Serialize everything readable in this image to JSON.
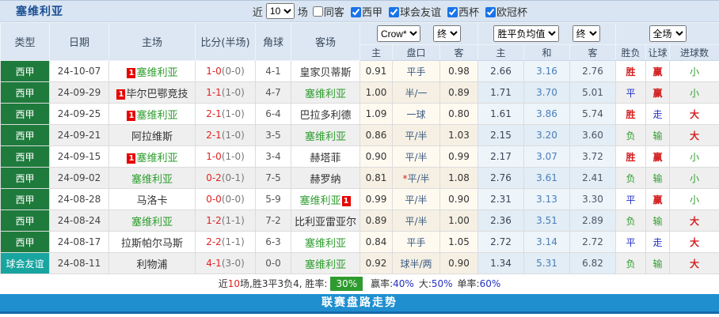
{
  "topbar": {
    "title": "塞维利亚",
    "near_label": "近",
    "near_count": "10",
    "unit_label": "场",
    "same_away_label": "同客",
    "same_away_checked": false,
    "filters": [
      {
        "label": "西甲",
        "checked": true
      },
      {
        "label": "球会友谊",
        "checked": true
      },
      {
        "label": "西杯",
        "checked": true
      },
      {
        "label": "欧冠杯",
        "checked": true
      }
    ]
  },
  "header": {
    "cols": [
      "类型",
      "日期",
      "主场",
      "比分(半场)",
      "角球",
      "客场"
    ],
    "sub": [
      "主",
      "盘口",
      "客",
      "主",
      "和",
      "客",
      "胜负",
      "让球",
      "进球数"
    ],
    "odds_source": "Crow*",
    "odds_state": "终",
    "avg_label": "胜平负均值",
    "avg_state": "终",
    "scope": "全场"
  },
  "rows": [
    {
      "league": "西甲",
      "ltype": "liga",
      "date": "24-10-07",
      "home": {
        "name": "塞维利亚",
        "sev": true,
        "card": "1",
        "card_pos": "l"
      },
      "score_full": "1-0",
      "score_half": "(0-0)",
      "corner": "4-1",
      "away": {
        "name": "皇家贝蒂斯",
        "sev": false,
        "card": null,
        "card_pos": null
      },
      "ah": [
        "0.91",
        "平手",
        "0.98"
      ],
      "star": false,
      "avg": [
        "2.66",
        "3.16",
        "2.76"
      ],
      "res": {
        "t": "胜",
        "c": "red"
      },
      "hcp": {
        "t": "赢",
        "c": "red"
      },
      "goal": {
        "t": "小",
        "c": "green"
      }
    },
    {
      "league": "西甲",
      "ltype": "liga",
      "date": "24-09-29",
      "home": {
        "name": "毕尔巴鄂竞技",
        "sev": false,
        "card": "1",
        "card_pos": "l"
      },
      "score_full": "1-1",
      "score_half": "(1-0)",
      "corner": "4-7",
      "away": {
        "name": "塞维利亚",
        "sev": true,
        "card": null,
        "card_pos": null
      },
      "ah": [
        "1.00",
        "半/一",
        "0.89"
      ],
      "star": false,
      "avg": [
        "1.71",
        "3.70",
        "5.01"
      ],
      "res": {
        "t": "平",
        "c": "blue"
      },
      "hcp": {
        "t": "赢",
        "c": "red"
      },
      "goal": {
        "t": "小",
        "c": "green"
      }
    },
    {
      "league": "西甲",
      "ltype": "liga",
      "date": "24-09-25",
      "home": {
        "name": "塞维利亚",
        "sev": true,
        "card": "1",
        "card_pos": "l"
      },
      "score_full": "2-1",
      "score_half": "(1-0)",
      "corner": "6-4",
      "away": {
        "name": "巴拉多利德",
        "sev": false,
        "card": null,
        "card_pos": null
      },
      "ah": [
        "1.09",
        "一球",
        "0.80"
      ],
      "star": false,
      "avg": [
        "1.61",
        "3.86",
        "5.74"
      ],
      "res": {
        "t": "胜",
        "c": "red"
      },
      "hcp": {
        "t": "走",
        "c": "blue"
      },
      "goal": {
        "t": "大",
        "c": "red"
      }
    },
    {
      "league": "西甲",
      "ltype": "liga",
      "date": "24-09-21",
      "home": {
        "name": "阿拉维斯",
        "sev": false,
        "card": null,
        "card_pos": null
      },
      "score_full": "2-1",
      "score_half": "(1-0)",
      "corner": "3-5",
      "away": {
        "name": "塞维利亚",
        "sev": true,
        "card": null,
        "card_pos": null
      },
      "ah": [
        "0.86",
        "平/半",
        "1.03"
      ],
      "star": false,
      "avg": [
        "2.15",
        "3.20",
        "3.60"
      ],
      "res": {
        "t": "负",
        "c": "green"
      },
      "hcp": {
        "t": "输",
        "c": "green"
      },
      "goal": {
        "t": "大",
        "c": "red"
      }
    },
    {
      "league": "西甲",
      "ltype": "liga",
      "date": "24-09-15",
      "home": {
        "name": "塞维利亚",
        "sev": true,
        "card": "1",
        "card_pos": "l"
      },
      "score_full": "1-0",
      "score_half": "(1-0)",
      "corner": "3-4",
      "away": {
        "name": "赫塔菲",
        "sev": false,
        "card": null,
        "card_pos": null
      },
      "ah": [
        "0.90",
        "平/半",
        "0.99"
      ],
      "star": false,
      "avg": [
        "2.17",
        "3.07",
        "3.72"
      ],
      "res": {
        "t": "胜",
        "c": "red"
      },
      "hcp": {
        "t": "赢",
        "c": "red"
      },
      "goal": {
        "t": "小",
        "c": "green"
      }
    },
    {
      "league": "西甲",
      "ltype": "liga",
      "date": "24-09-02",
      "home": {
        "name": "塞维利亚",
        "sev": true,
        "card": null,
        "card_pos": null
      },
      "score_full": "0-2",
      "score_half": "(0-1)",
      "corner": "7-5",
      "away": {
        "name": "赫罗纳",
        "sev": false,
        "card": null,
        "card_pos": null
      },
      "ah": [
        "0.81",
        "平/半",
        "1.08"
      ],
      "star": true,
      "avg": [
        "2.76",
        "3.61",
        "2.41"
      ],
      "res": {
        "t": "负",
        "c": "green"
      },
      "hcp": {
        "t": "输",
        "c": "green"
      },
      "goal": {
        "t": "小",
        "c": "green"
      }
    },
    {
      "league": "西甲",
      "ltype": "liga",
      "date": "24-08-28",
      "home": {
        "name": "马洛卡",
        "sev": false,
        "card": null,
        "card_pos": null
      },
      "score_full": "0-0",
      "score_half": "(0-0)",
      "corner": "5-9",
      "away": {
        "name": "塞维利亚",
        "sev": true,
        "card": "1",
        "card_pos": "r"
      },
      "ah": [
        "0.99",
        "平/半",
        "0.90"
      ],
      "star": false,
      "avg": [
        "2.31",
        "3.13",
        "3.30"
      ],
      "res": {
        "t": "平",
        "c": "blue"
      },
      "hcp": {
        "t": "赢",
        "c": "red"
      },
      "goal": {
        "t": "小",
        "c": "green"
      }
    },
    {
      "league": "西甲",
      "ltype": "liga",
      "date": "24-08-24",
      "home": {
        "name": "塞维利亚",
        "sev": true,
        "card": null,
        "card_pos": null
      },
      "score_full": "1-2",
      "score_half": "(1-1)",
      "corner": "7-2",
      "away": {
        "name": "比利亚雷亚尔",
        "sev": false,
        "card": null,
        "card_pos": null
      },
      "ah": [
        "0.89",
        "平/半",
        "1.00"
      ],
      "star": false,
      "avg": [
        "2.36",
        "3.51",
        "2.89"
      ],
      "res": {
        "t": "负",
        "c": "green"
      },
      "hcp": {
        "t": "输",
        "c": "green"
      },
      "goal": {
        "t": "大",
        "c": "red"
      }
    },
    {
      "league": "西甲",
      "ltype": "liga",
      "date": "24-08-17",
      "home": {
        "name": "拉斯帕尔马斯",
        "sev": false,
        "card": null,
        "card_pos": null
      },
      "score_full": "2-2",
      "score_half": "(1-1)",
      "corner": "6-3",
      "away": {
        "name": "塞维利亚",
        "sev": true,
        "card": null,
        "card_pos": null
      },
      "ah": [
        "0.84",
        "平手",
        "1.05"
      ],
      "star": false,
      "avg": [
        "2.72",
        "3.14",
        "2.72"
      ],
      "res": {
        "t": "平",
        "c": "blue"
      },
      "hcp": {
        "t": "走",
        "c": "blue"
      },
      "goal": {
        "t": "大",
        "c": "red"
      }
    },
    {
      "league": "球会友谊",
      "ltype": "friendly",
      "date": "24-08-11",
      "home": {
        "name": "利物浦",
        "sev": false,
        "card": null,
        "card_pos": null
      },
      "score_full": "4-1",
      "score_half": "(3-0)",
      "corner": "0-0",
      "away": {
        "name": "塞维利亚",
        "sev": true,
        "card": null,
        "card_pos": null
      },
      "ah": [
        "0.92",
        "球半/两",
        "0.90"
      ],
      "star": false,
      "avg": [
        "1.34",
        "5.31",
        "6.82"
      ],
      "res": {
        "t": "负",
        "c": "green"
      },
      "hcp": {
        "t": "输",
        "c": "green"
      },
      "goal": {
        "t": "大",
        "c": "red"
      }
    }
  ],
  "summary": {
    "near": "近",
    "count": "10",
    "detail": "场,胜3平3负4, 胜率:",
    "win_rate": "30%",
    "sec": [
      {
        "label": "赢率:",
        "value": "40%"
      },
      {
        "label": "大:",
        "value": "50%"
      },
      {
        "label": "单率:",
        "value": "60%"
      }
    ]
  },
  "footer": {
    "label": "联赛盘路走势"
  },
  "colors": {
    "league_green": "#1e7b3c",
    "friendly_teal": "#18a5a0",
    "sevilla_green": "#2f9e2f",
    "win_red": "#d42020",
    "draw_blue": "#2430c0",
    "score_red": "#e02222",
    "rate_badge_green": "#2e9b2e",
    "footer_blue": "#1f8fd0",
    "title_blue": "#1b4f93",
    "topbar_bg": "#d9e5f2"
  }
}
